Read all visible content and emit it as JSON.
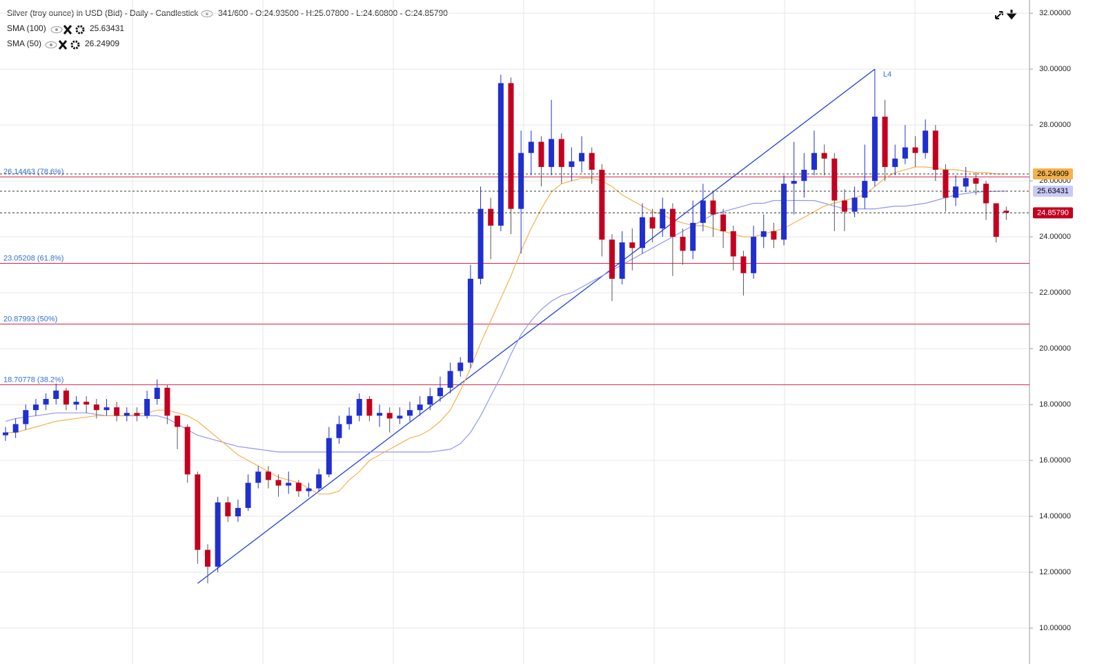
{
  "chart_data": {
    "type": "candlestick",
    "title": "Silver (troy ounce) in USD (Bid) - Daily - Candlestick",
    "ohlc_summary": "341/600 - O:24.93500 - H:25.07800 - L:24.60800 - C:24.85790",
    "up_color": "#1f2fd0",
    "down_color": "#c4001f",
    "open": [
      16.9,
      17.0,
      17.3,
      17.8,
      18.0,
      18.2,
      18.5,
      18.0,
      18.1,
      18.0,
      17.8,
      17.9,
      17.6,
      17.7,
      17.6,
      18.2,
      18.6,
      17.6,
      17.2,
      15.5,
      12.8,
      12.2,
      14.5,
      14.0,
      14.3,
      15.2,
      15.6,
      15.3,
      15.1,
      15.2,
      14.9,
      15.0,
      15.5,
      16.8,
      17.3,
      17.6,
      18.2,
      17.6,
      17.7,
      17.5,
      17.6,
      17.8,
      18.0,
      18.3,
      18.6,
      19.2,
      19.5,
      22.5,
      25.0,
      24.4,
      29.5,
      25.0,
      27.0,
      27.4,
      26.5,
      27.5,
      26.5,
      26.7,
      27.0,
      26.4,
      23.9,
      22.5,
      23.8,
      23.6,
      24.7,
      24.3,
      25.0,
      24.0,
      23.5,
      24.5,
      25.3,
      24.8,
      24.2,
      23.3,
      22.7,
      24.0,
      24.2,
      23.9,
      25.9,
      26.0,
      26.4,
      27.0,
      26.8,
      25.3,
      24.9,
      25.4,
      26.0,
      28.3,
      26.5,
      26.8,
      27.2,
      27.0,
      27.8,
      26.4,
      25.4,
      25.8,
      26.1,
      25.9,
      25.2,
      24.935
    ],
    "high": [
      17.2,
      17.5,
      18.0,
      18.2,
      18.4,
      18.75,
      18.6,
      18.3,
      18.3,
      18.2,
      18.2,
      18.1,
      17.9,
      17.9,
      18.5,
      18.9,
      18.7,
      17.6,
      17.3,
      15.6,
      13.0,
      14.7,
      14.7,
      14.6,
      15.5,
      15.8,
      15.8,
      15.5,
      15.6,
      15.3,
      15.2,
      15.7,
      17.2,
      17.6,
      17.9,
      18.4,
      18.3,
      18.0,
      17.9,
      17.9,
      18.1,
      18.3,
      18.6,
      19.0,
      19.5,
      19.7,
      23.0,
      25.8,
      25.4,
      29.8,
      29.7,
      27.8,
      27.8,
      27.6,
      28.9,
      27.7,
      27.2,
      27.6,
      27.2,
      26.6,
      24.1,
      24.2,
      24.3,
      25.2,
      25.0,
      25.4,
      25.2,
      24.3,
      25.3,
      25.9,
      25.6,
      25.0,
      24.4,
      23.5,
      24.4,
      24.8,
      24.5,
      26.2,
      27.4,
      27.0,
      27.8,
      27.3,
      27.0,
      25.7,
      25.8,
      27.3,
      30.0,
      28.9,
      27.3,
      28.0,
      27.6,
      28.2,
      28.0,
      26.6,
      26.2,
      26.5,
      26.3,
      26.0,
      25.2,
      25.078
    ],
    "low": [
      16.7,
      16.8,
      17.1,
      17.6,
      17.8,
      18.0,
      17.8,
      17.8,
      17.7,
      17.5,
      17.6,
      17.4,
      17.4,
      17.4,
      17.5,
      18.0,
      17.3,
      16.4,
      15.2,
      12.3,
      11.6,
      12.0,
      13.8,
      13.8,
      14.2,
      15.0,
      15.0,
      14.7,
      14.8,
      14.7,
      14.7,
      14.9,
      15.4,
      16.6,
      17.1,
      17.4,
      17.4,
      17.2,
      17.0,
      17.3,
      17.4,
      17.6,
      17.8,
      18.1,
      18.4,
      19.0,
      19.3,
      22.3,
      23.2,
      24.2,
      24.1,
      23.4,
      26.2,
      25.8,
      26.2,
      25.9,
      26.0,
      26.3,
      25.9,
      23.3,
      21.7,
      22.3,
      22.8,
      23.4,
      23.8,
      24.0,
      22.6,
      23.0,
      23.2,
      24.2,
      24.0,
      23.6,
      22.8,
      21.9,
      22.5,
      23.6,
      23.6,
      23.7,
      24.8,
      25.4,
      26.2,
      26.2,
      24.2,
      24.2,
      24.7,
      25.0,
      25.8,
      26.0,
      26.2,
      26.6,
      26.5,
      26.8,
      26.0,
      24.9,
      25.1,
      25.6,
      25.5,
      24.6,
      23.8,
      24.608
    ],
    "close": [
      17.0,
      17.3,
      17.8,
      18.0,
      18.2,
      18.5,
      18.0,
      18.1,
      18.0,
      17.8,
      17.9,
      17.6,
      17.7,
      17.6,
      18.2,
      18.6,
      17.6,
      17.2,
      15.5,
      12.8,
      12.2,
      14.5,
      14.0,
      14.3,
      15.2,
      15.6,
      15.3,
      15.1,
      15.2,
      14.9,
      15.0,
      15.5,
      16.8,
      17.3,
      17.6,
      18.2,
      17.6,
      17.7,
      17.5,
      17.6,
      17.8,
      18.0,
      18.3,
      18.6,
      19.2,
      19.5,
      22.5,
      25.0,
      24.4,
      29.5,
      25.0,
      27.0,
      27.4,
      26.5,
      27.5,
      26.5,
      26.7,
      27.0,
      26.4,
      23.9,
      22.5,
      23.8,
      23.6,
      24.7,
      24.3,
      25.0,
      24.0,
      23.5,
      24.5,
      25.3,
      24.8,
      24.2,
      23.3,
      22.7,
      24.0,
      24.2,
      23.9,
      25.9,
      26.0,
      26.4,
      27.0,
      26.8,
      25.3,
      24.9,
      25.4,
      26.0,
      28.3,
      26.5,
      26.8,
      27.2,
      27.0,
      27.8,
      26.4,
      25.4,
      25.8,
      26.1,
      25.9,
      25.2,
      24.0,
      24.8579
    ],
    "series": [
      {
        "name": "SMA (100)",
        "color": "#8f95f5",
        "last_label": {
          "value": 25.63431,
          "label": "25.63431"
        },
        "values": [
          17.4,
          17.5,
          17.55,
          17.6,
          17.65,
          17.7,
          17.7,
          17.7,
          17.7,
          17.65,
          17.6,
          17.6,
          17.6,
          17.6,
          17.6,
          17.6,
          17.5,
          17.3,
          17.1,
          16.9,
          16.8,
          16.7,
          16.6,
          16.5,
          16.45,
          16.4,
          16.35,
          16.3,
          16.3,
          16.3,
          16.3,
          16.3,
          16.3,
          16.3,
          16.3,
          16.3,
          16.3,
          16.3,
          16.3,
          16.3,
          16.3,
          16.3,
          16.3,
          16.35,
          16.4,
          16.6,
          17.0,
          17.6,
          18.3,
          19.0,
          19.8,
          20.5,
          21.0,
          21.4,
          21.7,
          21.9,
          22.0,
          22.2,
          22.4,
          22.6,
          22.8,
          23.0,
          23.2,
          23.4,
          23.6,
          23.8,
          24.0,
          24.2,
          24.4,
          24.6,
          24.8,
          24.9,
          25.0,
          25.1,
          25.2,
          25.2,
          25.3,
          25.3,
          25.3,
          25.3,
          25.3,
          25.2,
          25.1,
          25.0,
          25.0,
          25.0,
          25.0,
          25.05,
          25.1,
          25.1,
          25.15,
          25.2,
          25.3,
          25.4,
          25.5,
          25.55,
          25.6,
          25.62,
          25.63,
          25.63431
        ]
      },
      {
        "name": "SMA (50)",
        "color": "#f5b14a",
        "last_label": {
          "value": 26.24909,
          "label": "26.24909"
        },
        "values": [
          17.0,
          17.0,
          17.1,
          17.2,
          17.3,
          17.4,
          17.45,
          17.5,
          17.55,
          17.6,
          17.6,
          17.6,
          17.6,
          17.65,
          17.7,
          17.8,
          17.8,
          17.7,
          17.6,
          17.4,
          17.1,
          16.8,
          16.5,
          16.2,
          16.0,
          15.8,
          15.6,
          15.4,
          15.3,
          15.2,
          15.0,
          14.8,
          14.8,
          14.9,
          15.3,
          15.6,
          16.0,
          16.2,
          16.4,
          16.6,
          16.8,
          16.9,
          17.1,
          17.4,
          17.8,
          18.5,
          19.3,
          20.2,
          21.0,
          21.8,
          22.6,
          23.5,
          24.3,
          25.0,
          25.6,
          25.9,
          26.0,
          26.1,
          26.1,
          26.0,
          25.8,
          25.5,
          25.3,
          25.1,
          24.9,
          24.8,
          24.6,
          24.5,
          24.4,
          24.4,
          24.3,
          24.2,
          24.1,
          24.0,
          24.0,
          24.1,
          24.2,
          24.3,
          24.5,
          24.7,
          24.9,
          25.1,
          25.2,
          25.3,
          25.4,
          25.5,
          25.8,
          26.1,
          26.3,
          26.4,
          26.5,
          26.5,
          26.45,
          26.4,
          26.4,
          26.35,
          26.3,
          26.3,
          26.25,
          26.24909
        ]
      }
    ],
    "last_price": {
      "value": 24.8579,
      "label": "24.85790"
    },
    "fib_levels": [
      {
        "value": 26.14463,
        "label": "26.14463 (78.6%)"
      },
      {
        "value": 23.05208,
        "label": "23.05208 (61.8%)"
      },
      {
        "value": 20.87993,
        "label": "20.87993 (50%)"
      },
      {
        "value": 18.70778,
        "label": "18.70778 (38.2%)"
      }
    ],
    "trendline": {
      "label": "L4",
      "x": [
        19,
        86
      ],
      "y": [
        11.6,
        30.0
      ]
    },
    "ylim": [
      9.26,
      32.35
    ],
    "yticks": [
      {
        "value": 10,
        "label": "10.00000"
      },
      {
        "value": 12,
        "label": "12.00000"
      },
      {
        "value": 14,
        "label": "14.00000"
      },
      {
        "value": 16,
        "label": "16.00000"
      },
      {
        "value": 18,
        "label": "18.00000"
      },
      {
        "value": 20,
        "label": "20.00000"
      },
      {
        "value": 22,
        "label": "22.00000"
      },
      {
        "value": 24,
        "label": "24.00000"
      },
      {
        "value": 26,
        "label": "26.00000"
      },
      {
        "value": 28,
        "label": "28.00000"
      },
      {
        "value": 30,
        "label": "30.00000"
      },
      {
        "value": 32,
        "label": "32.00000"
      }
    ],
    "grid": true
  }
}
